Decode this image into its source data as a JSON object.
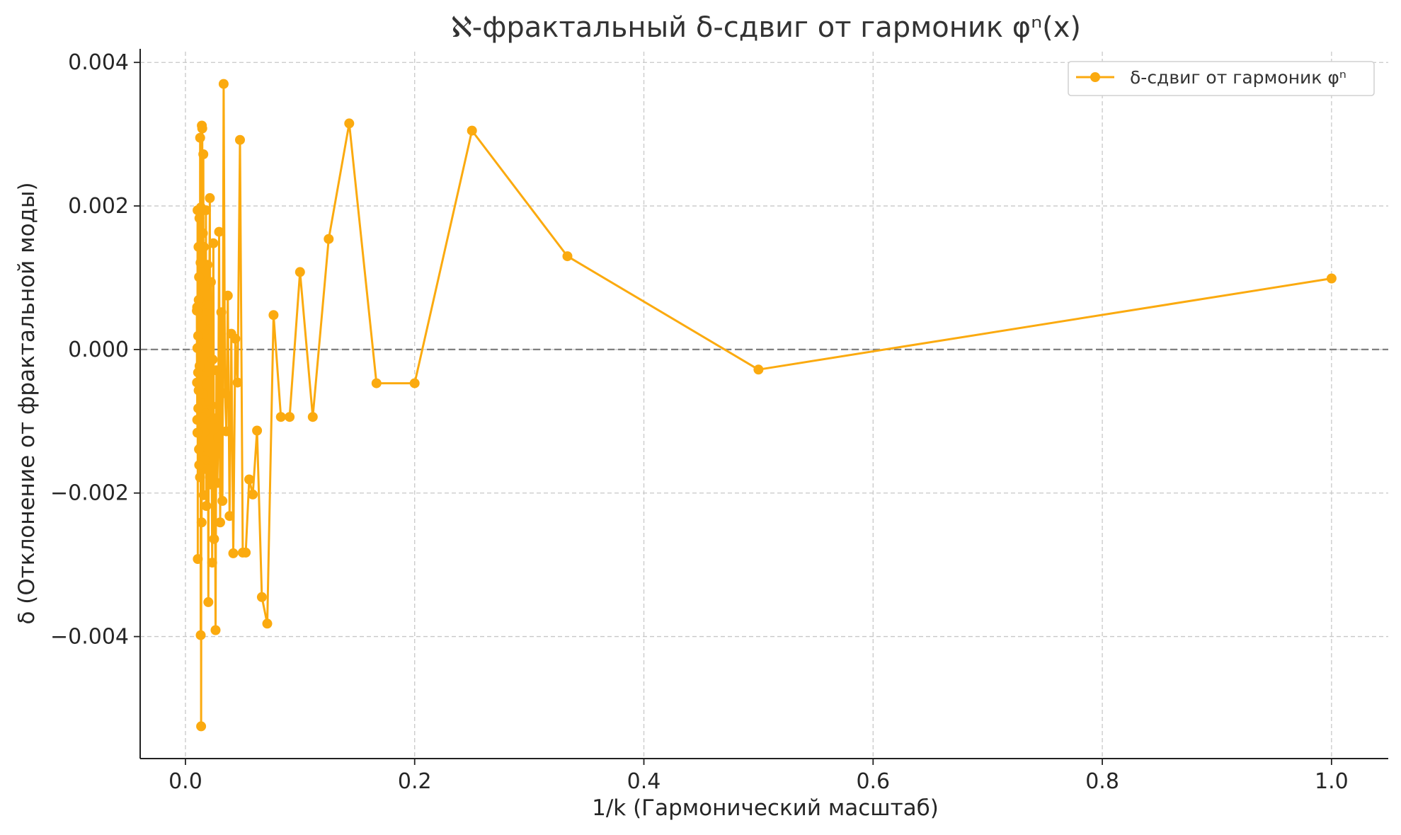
{
  "colors": {
    "series": "#fbaa0f",
    "zero_line": "#808080",
    "grid": "#c8c8c8",
    "axis": "#222222"
  },
  "chart_data": {
    "type": "line",
    "title": "ℵ-фрактальный δ-сдвиг от гармоник φⁿ(x)",
    "xlabel": "1/k (Гармонический масштаб)",
    "ylabel": "δ (Отклонение от фрактальной моды)",
    "xlim": [
      -0.0395,
      1.0495
    ],
    "ylim": [
      -0.0057,
      0.00415
    ],
    "x_ticks": [
      0.0,
      0.2,
      0.4,
      0.6,
      0.8,
      1.0
    ],
    "x_tick_labels": [
      "0.0",
      "0.2",
      "0.4",
      "0.6",
      "0.8",
      "1.0"
    ],
    "y_ticks": [
      0.004,
      0.002,
      0.0,
      -0.002,
      -0.004
    ],
    "y_tick_labels": [
      "0.004",
      "0.002",
      "0.000",
      "−0.002",
      "−0.004"
    ],
    "grid": true,
    "reference_line": {
      "y": 0.0,
      "style": "dashed"
    },
    "legend": {
      "position": "top-right",
      "entries": [
        "δ-сдвиг от гармоник φⁿ"
      ]
    },
    "series": [
      {
        "name": "δ-сдвиг от гармоник φⁿ",
        "marker": "circle",
        "x": [
          1.0,
          0.5,
          0.3333,
          0.25,
          0.2,
          0.1667,
          0.1429,
          0.125,
          0.1111,
          0.1,
          0.0909,
          0.0833,
          0.0769,
          0.0714,
          0.0667,
          0.0625,
          0.0588,
          0.0556,
          0.0526,
          0.05,
          0.0476,
          0.0455,
          0.0435,
          0.0417,
          0.04,
          0.0385,
          0.037,
          0.0357,
          0.0345,
          0.0333,
          0.0323,
          0.0313,
          0.0303,
          0.0294,
          0.0286,
          0.0278,
          0.027,
          0.0263,
          0.0256,
          0.025,
          0.0244,
          0.0238,
          0.0233,
          0.0227,
          0.0222,
          0.0217,
          0.0213,
          0.0208,
          0.0204,
          0.02,
          0.0196,
          0.0192,
          0.0189,
          0.0185,
          0.0182,
          0.0179,
          0.0175,
          0.0172,
          0.0169,
          0.0167,
          0.0164,
          0.0161,
          0.0159,
          0.0156,
          0.0154,
          0.0152,
          0.0149,
          0.0147,
          0.0145,
          0.0143,
          0.0141,
          0.0139,
          0.0137,
          0.0135,
          0.0133,
          0.0132,
          0.013,
          0.0128,
          0.0127,
          0.0125,
          0.0123,
          0.0122,
          0.012,
          0.0119,
          0.0118,
          0.0116,
          0.0115,
          0.0114,
          0.0112,
          0.0111,
          0.011,
          0.0109,
          0.0108,
          0.0106,
          0.0105,
          0.0104,
          0.0103,
          0.0102,
          0.0101,
          0.01
        ],
        "y": [
          0.00099,
          -0.00028,
          0.0013,
          0.00305,
          -0.00047,
          -0.00047,
          0.00315,
          0.00154,
          -0.00094,
          0.00108,
          -0.00094,
          -0.00094,
          0.00048,
          -0.00382,
          -0.00345,
          -0.00113,
          -0.00202,
          -0.00181,
          -0.00283,
          -0.00283,
          0.00292,
          -0.00046,
          0.00015,
          -0.00284,
          0.00022,
          -0.00232,
          0.00075,
          -0.00114,
          -0.00061,
          0.0037,
          -0.00211,
          0.00052,
          -0.00241,
          0.00164,
          -0.00123,
          -0.00186,
          -0.00029,
          -0.00391,
          -0.00096,
          -0.00264,
          0.00148,
          -0.00014,
          -0.00297,
          -0.00078,
          0.00094,
          -0.00188,
          0.00211,
          0.00062,
          -0.00072,
          -0.00352,
          -0.00031,
          0.00118,
          -0.00167,
          0.00041,
          -0.00218,
          0.00194,
          -0.00089,
          0.00027,
          -0.00154,
          0.00087,
          -0.00115,
          0.00143,
          -0.00203,
          0.00272,
          -0.00062,
          0.00162,
          -0.00038,
          0.00308,
          -0.00094,
          0.00312,
          -0.00241,
          0.00034,
          -0.00525,
          0.00198,
          -0.00398,
          0.00121,
          -0.00137,
          0.00295,
          -0.00178,
          0.00066,
          -0.00023,
          0.00183,
          -0.00161,
          0.00101,
          -0.00139,
          0.00069,
          -0.00057,
          0.00143,
          -0.00082,
          0.00019,
          -0.00032,
          0.00054,
          -0.00292,
          0.00194,
          -0.00116,
          2e-05,
          -0.00098,
          0.00059,
          -0.00046,
          0.00054
        ]
      }
    ]
  }
}
